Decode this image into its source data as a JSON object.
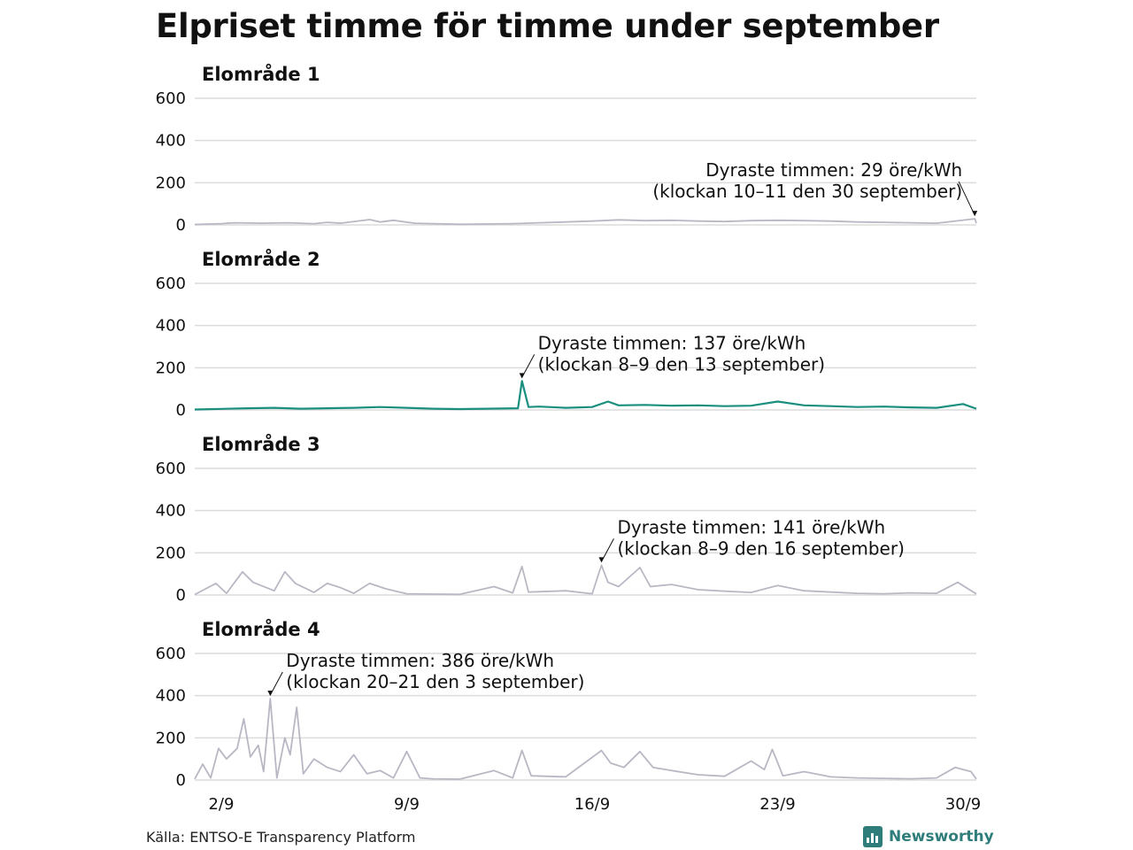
{
  "title": "Elpriset timme för timme under september",
  "source": "Källa: ENTSO-E Transparency Platform",
  "brand": {
    "name": "Newsworthy",
    "icon": "bar-chart-icon"
  },
  "colors": {
    "highlight": "#1a8f7f",
    "muted": "#b8b8c4",
    "grid": "#dcdcdc"
  },
  "chart_data": [
    {
      "type": "line",
      "title": "Elområde 1",
      "ylim": [
        0,
        600
      ],
      "yticks": [
        "0",
        "200",
        "400",
        "600"
      ],
      "xticks": [
        {
          "day": 2,
          "label": "2/9"
        },
        {
          "day": 9,
          "label": "9/9"
        },
        {
          "day": 16,
          "label": "16/9"
        },
        {
          "day": 23,
          "label": "23/9"
        },
        {
          "day": 30,
          "label": "30/9"
        }
      ],
      "xlim_days": [
        1,
        30.5
      ],
      "highlight": false,
      "max": {
        "day": 30.44,
        "value": 29
      },
      "annotation": [
        "Dyraste timmen: 29 öre/kWh",
        "(klockan 10–11 den 30 september)"
      ],
      "points": [
        [
          1,
          2
        ],
        [
          2,
          6
        ],
        [
          2.5,
          10
        ],
        [
          3.5,
          8
        ],
        [
          4.5,
          10
        ],
        [
          5.5,
          6
        ],
        [
          6,
          12
        ],
        [
          6.5,
          8
        ],
        [
          7.6,
          25
        ],
        [
          8,
          14
        ],
        [
          8.5,
          22
        ],
        [
          9.3,
          8
        ],
        [
          10,
          6
        ],
        [
          11,
          3
        ],
        [
          12,
          4
        ],
        [
          13,
          6
        ],
        [
          14,
          10
        ],
        [
          15,
          14
        ],
        [
          16,
          18
        ],
        [
          17,
          24
        ],
        [
          18,
          20
        ],
        [
          19,
          22
        ],
        [
          20,
          18
        ],
        [
          21,
          16
        ],
        [
          22,
          20
        ],
        [
          23,
          22
        ],
        [
          24,
          20
        ],
        [
          25,
          18
        ],
        [
          26,
          14
        ],
        [
          27,
          12
        ],
        [
          28,
          10
        ],
        [
          29,
          8
        ],
        [
          30.44,
          29
        ],
        [
          30.5,
          8
        ]
      ]
    },
    {
      "type": "line",
      "title": "Elområde 2",
      "ylim": [
        0,
        600
      ],
      "yticks": [
        "0",
        "200",
        "400",
        "600"
      ],
      "xticks": [
        {
          "day": 2,
          "label": "2/9"
        },
        {
          "day": 9,
          "label": "9/9"
        },
        {
          "day": 16,
          "label": "16/9"
        },
        {
          "day": 23,
          "label": "23/9"
        },
        {
          "day": 30,
          "label": "30/9"
        }
      ],
      "xlim_days": [
        1,
        30.5
      ],
      "highlight": true,
      "max": {
        "day": 13.35,
        "value": 137
      },
      "annotation": [
        "Dyraste timmen: 137 öre/kWh",
        "(klockan 8–9 den 13 september)"
      ],
      "points": [
        [
          1,
          2
        ],
        [
          2,
          5
        ],
        [
          3,
          8
        ],
        [
          4,
          10
        ],
        [
          5,
          6
        ],
        [
          6,
          8
        ],
        [
          7,
          10
        ],
        [
          8,
          14
        ],
        [
          9,
          10
        ],
        [
          10,
          6
        ],
        [
          11,
          4
        ],
        [
          12,
          6
        ],
        [
          13.2,
          8
        ],
        [
          13.35,
          137
        ],
        [
          13.6,
          14
        ],
        [
          14,
          16
        ],
        [
          15,
          10
        ],
        [
          16,
          14
        ],
        [
          16.6,
          40
        ],
        [
          17,
          22
        ],
        [
          18,
          24
        ],
        [
          19,
          20
        ],
        [
          20,
          22
        ],
        [
          21,
          18
        ],
        [
          22,
          20
        ],
        [
          23,
          40
        ],
        [
          24,
          22
        ],
        [
          25,
          18
        ],
        [
          26,
          14
        ],
        [
          27,
          16
        ],
        [
          28,
          12
        ],
        [
          29,
          10
        ],
        [
          30,
          28
        ],
        [
          30.5,
          6
        ]
      ]
    },
    {
      "type": "line",
      "title": "Elområde 3",
      "ylim": [
        0,
        600
      ],
      "yticks": [
        "0",
        "200",
        "400",
        "600"
      ],
      "xticks": [
        {
          "day": 2,
          "label": "2/9"
        },
        {
          "day": 9,
          "label": "9/9"
        },
        {
          "day": 16,
          "label": "16/9"
        },
        {
          "day": 23,
          "label": "23/9"
        },
        {
          "day": 30,
          "label": "30/9"
        }
      ],
      "xlim_days": [
        1,
        30.5
      ],
      "highlight": false,
      "max": {
        "day": 16.35,
        "value": 141
      },
      "annotation": [
        "Dyraste timmen: 141 öre/kWh",
        "(klockan 8–9 den 16 september)"
      ],
      "points": [
        [
          1,
          2
        ],
        [
          1.8,
          55
        ],
        [
          2.2,
          8
        ],
        [
          2.8,
          110
        ],
        [
          3.2,
          60
        ],
        [
          4,
          20
        ],
        [
          4.4,
          110
        ],
        [
          4.8,
          55
        ],
        [
          5.5,
          12
        ],
        [
          6,
          55
        ],
        [
          6.5,
          35
        ],
        [
          7,
          8
        ],
        [
          7.6,
          55
        ],
        [
          8.2,
          30
        ],
        [
          9,
          6
        ],
        [
          10,
          4
        ],
        [
          11,
          3
        ],
        [
          12.3,
          40
        ],
        [
          13,
          10
        ],
        [
          13.35,
          135
        ],
        [
          13.6,
          14
        ],
        [
          15,
          20
        ],
        [
          16,
          6
        ],
        [
          16.35,
          141
        ],
        [
          16.6,
          60
        ],
        [
          17,
          40
        ],
        [
          17.8,
          130
        ],
        [
          18.2,
          40
        ],
        [
          19,
          50
        ],
        [
          20,
          25
        ],
        [
          21,
          18
        ],
        [
          22,
          12
        ],
        [
          23,
          45
        ],
        [
          24,
          20
        ],
        [
          25,
          14
        ],
        [
          26,
          8
        ],
        [
          27,
          6
        ],
        [
          28,
          10
        ],
        [
          29,
          8
        ],
        [
          29.8,
          60
        ],
        [
          30.5,
          5
        ]
      ]
    },
    {
      "type": "line",
      "title": "Elområde 4",
      "ylim": [
        0,
        600
      ],
      "yticks": [
        "0",
        "200",
        "400",
        "600"
      ],
      "xticks": [
        {
          "day": 2,
          "label": "2/9"
        },
        {
          "day": 9,
          "label": "9/9"
        },
        {
          "day": 16,
          "label": "16/9"
        },
        {
          "day": 23,
          "label": "23/9"
        },
        {
          "day": 30,
          "label": "30/9"
        }
      ],
      "xlim_days": [
        1,
        30.5
      ],
      "highlight": false,
      "max": {
        "day": 3.85,
        "value": 386
      },
      "annotation": [
        "Dyraste timmen: 386 öre/kWh",
        "(klockan 20–21 den 3 september)"
      ],
      "points": [
        [
          1,
          5
        ],
        [
          1.3,
          75
        ],
        [
          1.6,
          10
        ],
        [
          1.9,
          150
        ],
        [
          2.2,
          100
        ],
        [
          2.6,
          150
        ],
        [
          2.85,
          290
        ],
        [
          3.1,
          110
        ],
        [
          3.4,
          165
        ],
        [
          3.6,
          40
        ],
        [
          3.85,
          386
        ],
        [
          4.1,
          10
        ],
        [
          4.4,
          200
        ],
        [
          4.6,
          120
        ],
        [
          4.85,
          345
        ],
        [
          5.1,
          30
        ],
        [
          5.5,
          100
        ],
        [
          6,
          60
        ],
        [
          6.5,
          40
        ],
        [
          7,
          120
        ],
        [
          7.5,
          30
        ],
        [
          8,
          45
        ],
        [
          8.5,
          10
        ],
        [
          9,
          135
        ],
        [
          9.5,
          10
        ],
        [
          10,
          6
        ],
        [
          11,
          4
        ],
        [
          12.3,
          45
        ],
        [
          13,
          10
        ],
        [
          13.35,
          140
        ],
        [
          13.7,
          20
        ],
        [
          15,
          15
        ],
        [
          16.35,
          140
        ],
        [
          16.7,
          80
        ],
        [
          17.2,
          60
        ],
        [
          17.8,
          135
        ],
        [
          18.3,
          60
        ],
        [
          19,
          45
        ],
        [
          20,
          25
        ],
        [
          21,
          18
        ],
        [
          22,
          90
        ],
        [
          22.5,
          50
        ],
        [
          22.8,
          145
        ],
        [
          23.2,
          20
        ],
        [
          24,
          40
        ],
        [
          25,
          15
        ],
        [
          26,
          10
        ],
        [
          27,
          8
        ],
        [
          28,
          6
        ],
        [
          29,
          10
        ],
        [
          29.7,
          60
        ],
        [
          30.3,
          40
        ],
        [
          30.5,
          5
        ]
      ]
    }
  ]
}
